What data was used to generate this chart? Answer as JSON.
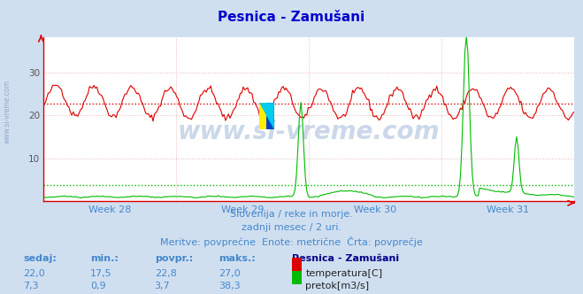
{
  "title": "Pesnica - Zamušani",
  "bg_color": "#d0dff0",
  "plot_bg_color": "#ffffff",
  "grid_color": "#e8b8b8",
  "temp_color": "#dd0000",
  "flow_color": "#00bb00",
  "xlabel_color": "#4488cc",
  "title_color": "#0000cc",
  "week_labels": [
    "Week 28",
    "Week 29",
    "Week 30",
    "Week 31"
  ],
  "subtitle1": "Slovenija / reke in morje.",
  "subtitle2": "zadnji mesec / 2 uri.",
  "subtitle3": "Meritve: povprečne  Enote: metrične  Črta: povprečje",
  "stats_header": [
    "sedaj:",
    "min.:",
    "povpr.:",
    "maks.:"
  ],
  "stat_label": "Pesnica - Zamušani",
  "temp_stats": [
    "22,0",
    "17,5",
    "22,8",
    "27,0"
  ],
  "flow_stats": [
    "7,3",
    "0,9",
    "3,7",
    "38,3"
  ],
  "temp_label": "temperatura[C]",
  "flow_label": "pretok[m3/s]",
  "ylim_min": 0,
  "ylim_max": 38.3,
  "yticks": [
    10,
    20,
    30
  ],
  "n_points": 360,
  "temp_min": 17.5,
  "temp_max": 27.0,
  "temp_avg": 22.8,
  "flow_avg": 3.7,
  "flow_max": 38.3,
  "wm_color": "#3366aa",
  "wm_alpha": 0.25
}
